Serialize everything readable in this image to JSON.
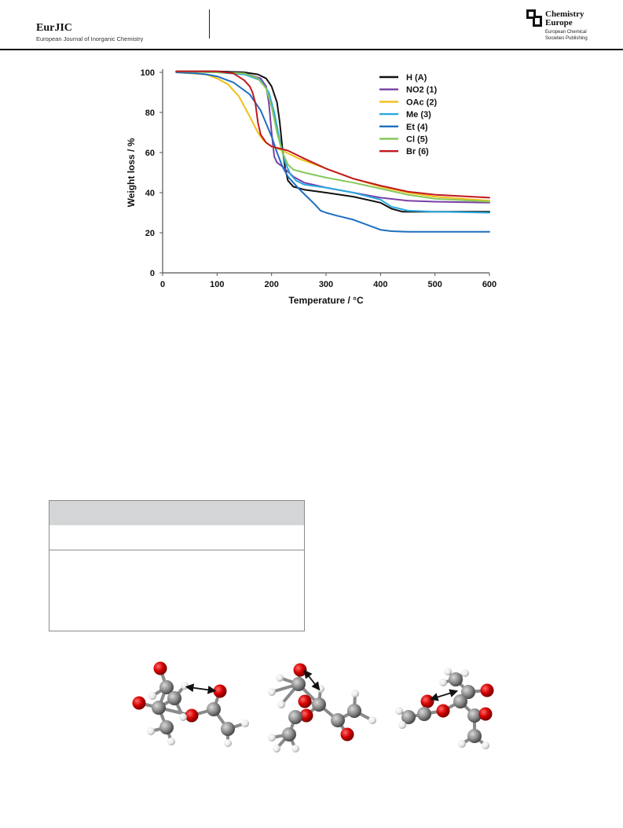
{
  "header": {
    "journal_title": "EurJIC",
    "journal_subtitle": "European Journal of Inorganic Chemistry",
    "publisher_line1": "Chemistry",
    "publisher_line2": "Europe",
    "publisher_sub1": "European Chemical",
    "publisher_sub2": "Societies Publishing"
  },
  "chart_data": {
    "type": "line",
    "title": "",
    "xlabel": "Temperature / °C",
    "ylabel": "Weight loss  / %",
    "xlim": [
      0,
      600
    ],
    "ylim": [
      0,
      100
    ],
    "xticks": [
      "0",
      "100",
      "200",
      "300",
      "400",
      "500",
      "600"
    ],
    "yticks": [
      "0",
      "20",
      "40",
      "60",
      "80",
      "100"
    ],
    "grid": false,
    "legend_position": "top-right",
    "series": [
      {
        "name": "H (A)",
        "color": "#111111",
        "x": [
          25,
          100,
          150,
          175,
          190,
          200,
          210,
          215,
          220,
          225,
          230,
          240,
          260,
          300,
          350,
          400,
          420,
          440,
          470,
          500,
          600
        ],
        "y": [
          100.5,
          100.5,
          100,
          99,
          97,
          93,
          85,
          75,
          62,
          52,
          46,
          43,
          41.5,
          40,
          38,
          35,
          32,
          30.5,
          30.5,
          30.5,
          30.5
        ]
      },
      {
        "name": "NO2 (1)",
        "color": "#7a3fa6",
        "x": [
          25,
          100,
          150,
          180,
          190,
          195,
          200,
          205,
          210,
          220,
          240,
          260,
          300,
          350,
          400,
          450,
          500,
          600
        ],
        "y": [
          100.5,
          100,
          99.5,
          97,
          93,
          85,
          70,
          58,
          55,
          53,
          48,
          45,
          42.5,
          40,
          37.5,
          36,
          35.5,
          35
        ]
      },
      {
        "name": "OAc (2)",
        "color": "#f2be17",
        "x": [
          25,
          80,
          100,
          120,
          140,
          160,
          175,
          185,
          200,
          220,
          250,
          300,
          350,
          400,
          450,
          500,
          600
        ],
        "y": [
          100,
          99,
          97,
          94,
          88,
          78,
          70,
          66,
          63,
          61,
          57,
          52,
          47,
          43,
          40,
          38,
          36
        ]
      },
      {
        "name": "Me (3)",
        "color": "#29a9e0",
        "x": [
          25,
          100,
          150,
          180,
          195,
          205,
          215,
          225,
          235,
          245,
          260,
          300,
          350,
          400,
          420,
          450,
          500,
          600
        ],
        "y": [
          100.5,
          100,
          99,
          96,
          90,
          80,
          66,
          55,
          49,
          46,
          44,
          42.5,
          40,
          36.5,
          33,
          31,
          30.5,
          30
        ]
      },
      {
        "name": "Et (4)",
        "color": "#1e6fc0",
        "x": [
          25,
          60,
          80,
          100,
          130,
          160,
          180,
          200,
          210,
          220,
          230,
          240,
          250,
          265,
          280,
          290,
          300,
          320,
          350,
          380,
          400,
          420,
          450,
          500,
          600
        ],
        "y": [
          100,
          99.5,
          99,
          98,
          95,
          89,
          81,
          68,
          60,
          53,
          48,
          45,
          42,
          38,
          34,
          31,
          30,
          28.5,
          26.5,
          23.5,
          21.5,
          20.8,
          20.5,
          20.5,
          20.5
        ]
      },
      {
        "name": "Cl (5)",
        "color": "#86c75a",
        "x": [
          25,
          100,
          150,
          175,
          190,
          200,
          210,
          220,
          230,
          240,
          260,
          300,
          350,
          400,
          450,
          500,
          600
        ],
        "y": [
          100.5,
          100,
          99.5,
          97,
          92,
          83,
          70,
          60,
          54,
          51.5,
          50,
          47.5,
          45,
          42,
          39,
          37,
          35.5
        ]
      },
      {
        "name": "Br (6)",
        "color": "#c0181f",
        "x": [
          25,
          100,
          130,
          150,
          160,
          165,
          170,
          175,
          180,
          190,
          200,
          215,
          230,
          260,
          300,
          350,
          400,
          450,
          500,
          600
        ],
        "y": [
          100.5,
          100.5,
          99.5,
          96,
          93,
          90,
          85,
          75,
          69,
          65,
          63,
          62,
          61,
          57,
          52,
          47,
          43.5,
          40.5,
          39,
          37.5
        ]
      }
    ]
  }
}
